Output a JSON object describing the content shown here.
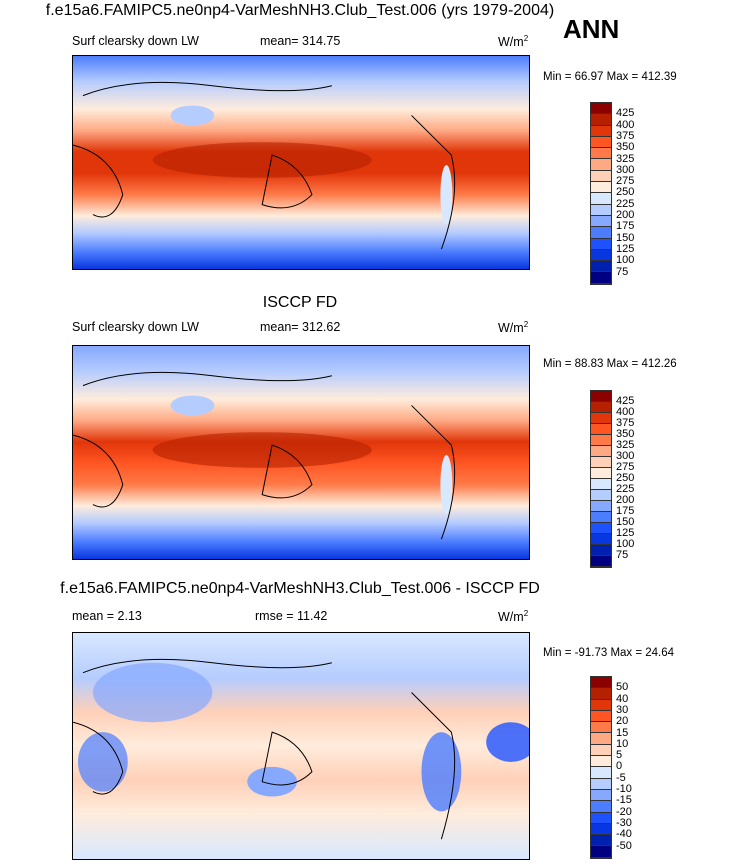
{
  "season": "ANN",
  "panels": [
    {
      "title": "f.e15a6.FAMIPC5.ne0np4-VarMeshNH3.Club_Test.006 (yrs 1979-2004)",
      "left": "Surf clearsky down LW",
      "center": "mean= 314.75",
      "units": "W/m",
      "units_sup": "2",
      "minmax": "Min =  66.97 Max = 412.39",
      "levels": [
        "425",
        "400",
        "375",
        "350",
        "325",
        "300",
        "275",
        "250",
        "225",
        "200",
        "175",
        "150",
        "125",
        "100",
        "75"
      ]
    },
    {
      "title": "ISCCP FD",
      "left": "Surf clearsky down LW",
      "center": "mean= 312.62",
      "units": "W/m",
      "units_sup": "2",
      "minmax": "Min =  88.83 Max = 412.26",
      "levels": [
        "425",
        "400",
        "375",
        "350",
        "325",
        "300",
        "275",
        "250",
        "225",
        "200",
        "175",
        "150",
        "125",
        "100",
        "75"
      ]
    },
    {
      "title": "f.e15a6.FAMIPC5.ne0np4-VarMeshNH3.Club_Test.006 - ISCCP FD",
      "left": "mean =   2.13",
      "center": "rmse =  11.42",
      "units": "W/m",
      "units_sup": "2",
      "minmax": "Min = -91.73 Max =  24.64",
      "levels": [
        "50",
        "40",
        "30",
        "20",
        "15",
        "10",
        "5",
        "0",
        "-5",
        "-10",
        "-15",
        "-20",
        "-30",
        "-40",
        "-50"
      ]
    }
  ],
  "colors": [
    "#8b0000",
    "#b52100",
    "#e0360a",
    "#ff5522",
    "#ff7a48",
    "#ffa984",
    "#ffd0b8",
    "#ffecdc",
    "#d8e8ff",
    "#b5ccff",
    "#86a8ff",
    "#4c7dff",
    "#1f52ff",
    "#0836e0",
    "#0020b0",
    "#000080"
  ]
}
